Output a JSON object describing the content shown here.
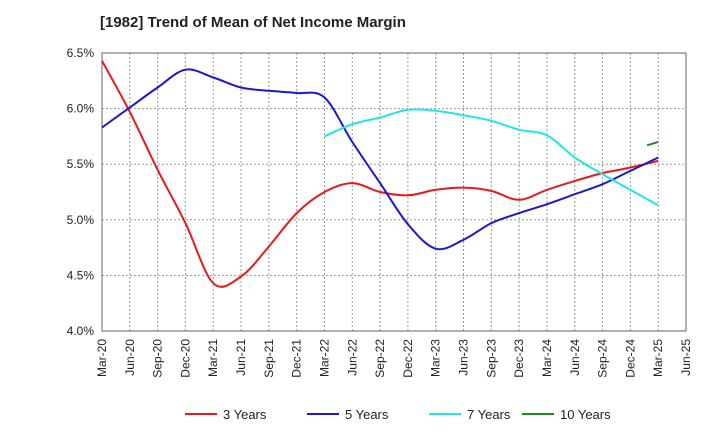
{
  "chart_data": {
    "type": "line",
    "title": "[1982]  Trend of Mean of Net Income Margin",
    "xlabel": "",
    "ylabel": "",
    "x": [
      "Mar-20",
      "Jun-20",
      "Sep-20",
      "Dec-20",
      "Mar-21",
      "Jun-21",
      "Sep-21",
      "Dec-21",
      "Mar-22",
      "Jun-22",
      "Sep-22",
      "Dec-22",
      "Mar-23",
      "Jun-23",
      "Sep-23",
      "Dec-23",
      "Mar-24",
      "Jun-24",
      "Sep-24",
      "Dec-24",
      "Mar-25",
      "Jun-25"
    ],
    "ylim": [
      4.0,
      6.5
    ],
    "yticks": [
      "4.0%",
      "4.5%",
      "5.0%",
      "5.5%",
      "6.0%",
      "6.5%"
    ],
    "grid": true,
    "legend_position": "bottom",
    "series": [
      {
        "name": "3 Years",
        "color": "#e8191a",
        "values": [
          6.43,
          5.97,
          5.45,
          4.97,
          4.43,
          4.49,
          4.76,
          5.06,
          5.25,
          5.33,
          5.25,
          5.22,
          5.27,
          5.29,
          5.26,
          5.18,
          5.27,
          5.35,
          5.42,
          5.47,
          5.53,
          null
        ]
      },
      {
        "name": "5 Years",
        "color": "#1a1acc",
        "values": [
          5.83,
          6.01,
          6.19,
          6.35,
          6.28,
          6.19,
          6.16,
          6.14,
          6.1,
          5.7,
          5.33,
          4.96,
          4.74,
          4.82,
          4.97,
          5.06,
          5.14,
          5.23,
          5.32,
          5.44,
          5.56,
          null
        ]
      },
      {
        "name": "7 Years",
        "color": "#22e6e6",
        "values": [
          null,
          null,
          null,
          null,
          null,
          null,
          null,
          null,
          5.75,
          5.86,
          5.92,
          5.99,
          5.98,
          5.94,
          5.89,
          5.81,
          5.76,
          5.56,
          5.41,
          5.27,
          5.13,
          null
        ]
      },
      {
        "name": "10 Years",
        "color": "#228822",
        "values": [
          null,
          null,
          null,
          null,
          null,
          null,
          null,
          null,
          null,
          null,
          null,
          null,
          null,
          null,
          null,
          null,
          null,
          null,
          null,
          null,
          5.7,
          null
        ],
        "partial_start_value": 5.67
      }
    ]
  }
}
